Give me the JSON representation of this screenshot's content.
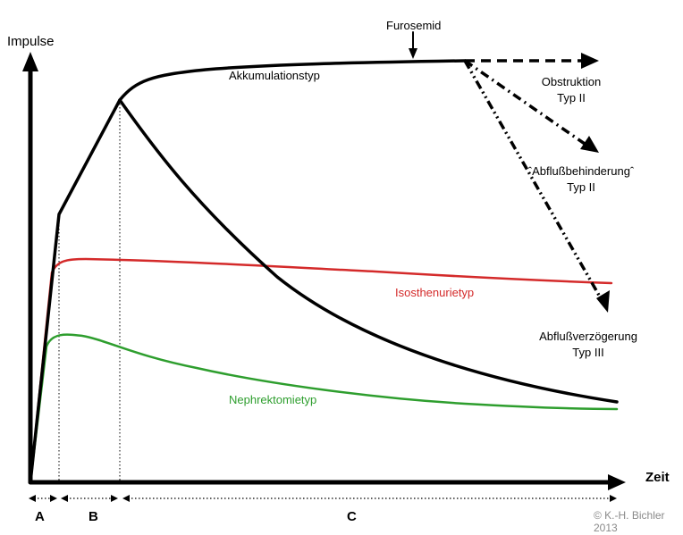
{
  "chart_data": {
    "type": "line",
    "y_label": "Impulse",
    "x_label": "Zeit",
    "phases": [
      "A",
      "B",
      "C"
    ],
    "annotation": "Furosemid",
    "series": [
      {
        "name": "Akkumulationstyp",
        "color": "#000000",
        "style": "solid"
      },
      {
        "name": "Isosthenurietyp",
        "color": "#d42a2a",
        "style": "solid"
      },
      {
        "name": "Nephrektomietyp",
        "color": "#2e9e2e",
        "style": "solid"
      },
      {
        "name": "Obstruktion Typ II",
        "color": "#000000",
        "style": "dashed"
      },
      {
        "name": "ˆAbflußbehinderungˆ Typ II",
        "color": "#000000",
        "style": "dash-dot"
      },
      {
        "name": "Abflußverzögerung Typ III",
        "color": "#000000",
        "style": "dash-dot-dot"
      }
    ]
  },
  "labels": {
    "impulse": "Impulse",
    "zeit": "Zeit",
    "furosemid": "Furosemid",
    "akkumulation": "Akkumulationstyp",
    "obstruktion_1": "Obstruktion",
    "obstruktion_2": "Typ II",
    "abfluss_1": "ˆAbflußbehinderungˆ",
    "abfluss_2": "Typ II",
    "isosthenurie": "Isosthenurietyp",
    "verzoegerung_1": "Abflußverzögerung",
    "verzoegerung_2": "Typ III",
    "nephrektomie": "Nephrektomietyp",
    "phase_a": "A",
    "phase_b": "B",
    "phase_c": "C",
    "copyright_1": "© K.-H. Bichler",
    "copyright_2": "2013"
  },
  "colors": {
    "black": "#000000",
    "red": "#d42a2a",
    "green": "#2e9e2e",
    "copyright": "#8a8a8a"
  }
}
